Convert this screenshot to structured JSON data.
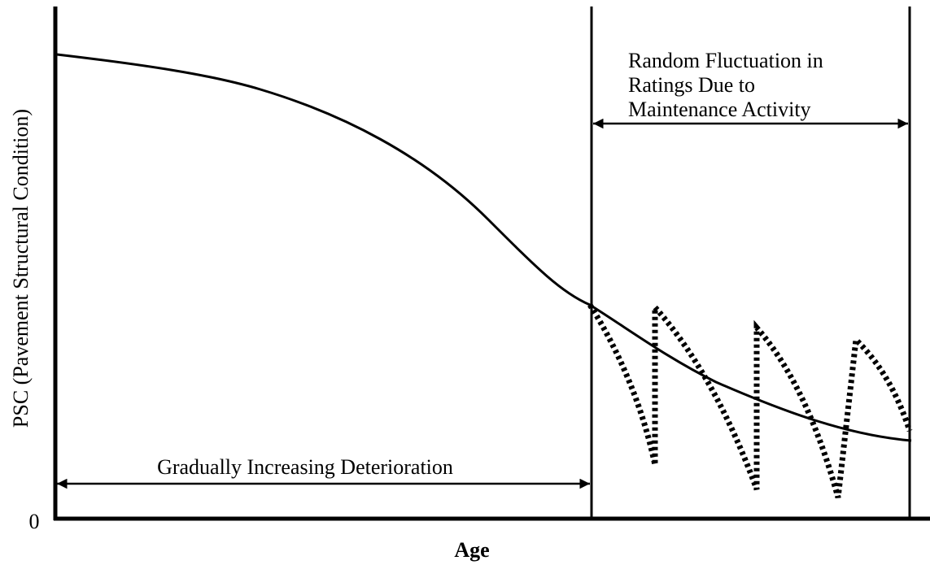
{
  "y_axis_label": "PSC (Pavement Structural Condition)",
  "x_axis_label": "Age",
  "origin_label": "0",
  "annotations": {
    "left_span": "Gradually Increasing Deterioration",
    "right_span": [
      "Random Fluctuation in",
      "Ratings Due to",
      "Maintenance Activity"
    ]
  }
}
